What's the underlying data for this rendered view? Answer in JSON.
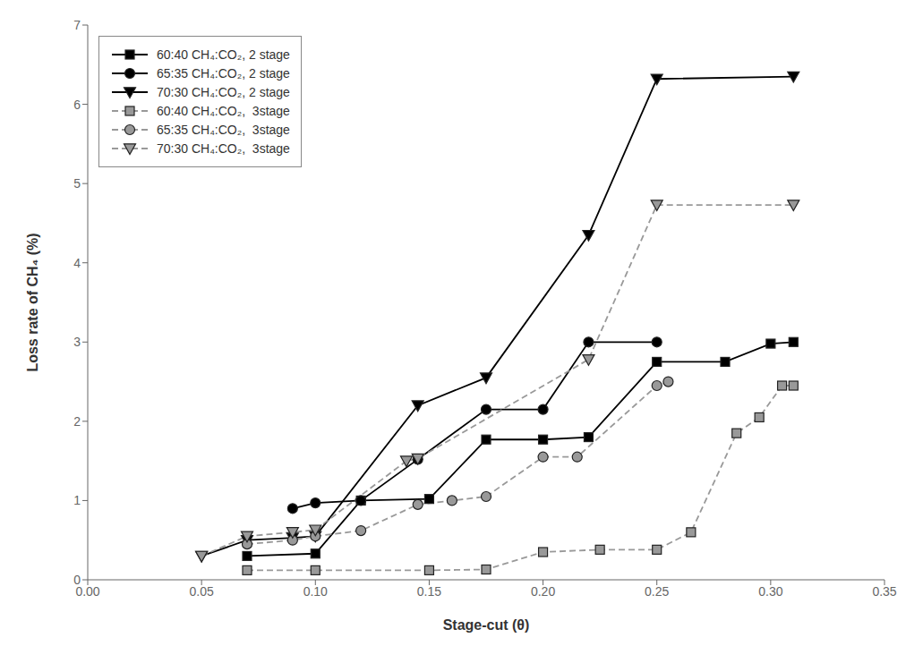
{
  "chart_data": {
    "type": "line",
    "x_label": "Stage-cut (θ)",
    "y_label": "Loss rate of CH₄ (%)",
    "xlim": [
      0.0,
      0.35
    ],
    "ylim": [
      0,
      7
    ],
    "xticks": [
      {
        "value": 0.0,
        "label": "0.00"
      },
      {
        "value": 0.05,
        "label": "0.05"
      },
      {
        "value": 0.1,
        "label": "0.10"
      },
      {
        "value": 0.15,
        "label": "0.15"
      },
      {
        "value": 0.2,
        "label": "0.20"
      },
      {
        "value": 0.25,
        "label": "0.25"
      },
      {
        "value": 0.3,
        "label": "0.30"
      },
      {
        "value": 0.35,
        "label": "0.35"
      }
    ],
    "yticks": [
      0,
      1,
      2,
      3,
      4,
      5,
      6,
      7
    ],
    "grid": false,
    "legend": "upper left",
    "series": [
      {
        "name": "60:40 CH₄:CO₂, 2 stage",
        "color": "#000000",
        "marker": "square",
        "line_style": "solid",
        "x": [
          0.07,
          0.1,
          0.12,
          0.15,
          0.175,
          0.2,
          0.22,
          0.25,
          0.28,
          0.3,
          0.31
        ],
        "values": [
          0.3,
          0.33,
          1.0,
          1.02,
          1.77,
          1.77,
          1.8,
          2.75,
          2.75,
          2.98,
          3.0
        ]
      },
      {
        "name": "65:35 CH₄:CO₂, 2 stage",
        "color": "#000000",
        "marker": "circle",
        "line_style": "solid",
        "x": [
          0.09,
          0.1,
          0.12,
          0.145,
          0.175,
          0.2,
          0.22,
          0.25
        ],
        "values": [
          0.9,
          0.97,
          1.0,
          1.52,
          2.15,
          2.15,
          3.0,
          3.0
        ]
      },
      {
        "name": "70:30 CH₄:CO₂, 2 stage",
        "color": "#000000",
        "marker": "triangle_down",
        "line_style": "solid",
        "x": [
          0.05,
          0.07,
          0.09,
          0.1,
          0.145,
          0.175,
          0.22,
          0.25,
          0.31
        ],
        "values": [
          0.3,
          0.5,
          0.53,
          0.55,
          2.2,
          2.55,
          4.35,
          6.32,
          6.35
        ]
      },
      {
        "name": "60:40 CH₄:CO₂,  3stage",
        "color": "#999999",
        "marker": "square",
        "line_style": "dashed",
        "x": [
          0.07,
          0.1,
          0.15,
          0.175,
          0.2,
          0.225,
          0.25,
          0.265,
          0.285,
          0.295,
          0.305,
          0.31
        ],
        "values": [
          0.12,
          0.12,
          0.12,
          0.13,
          0.35,
          0.38,
          0.38,
          0.6,
          1.85,
          2.05,
          2.45,
          2.45
        ]
      },
      {
        "name": "65:35 CH₄:CO₂,  3stage",
        "color": "#999999",
        "marker": "circle",
        "line_style": "dashed",
        "x": [
          0.07,
          0.09,
          0.1,
          0.12,
          0.145,
          0.16,
          0.175,
          0.2,
          0.215,
          0.25,
          0.255
        ],
        "values": [
          0.45,
          0.5,
          0.55,
          0.62,
          0.95,
          1.0,
          1.05,
          1.55,
          1.55,
          2.45,
          2.5
        ]
      },
      {
        "name": "70:30 CH₄:CO₂,  3stage",
        "color": "#999999",
        "marker": "triangle_down",
        "line_style": "dashed",
        "x": [
          0.05,
          0.07,
          0.09,
          0.1,
          0.14,
          0.145,
          0.22,
          0.25,
          0.31
        ],
        "values": [
          0.3,
          0.55,
          0.6,
          0.63,
          1.5,
          1.53,
          2.78,
          4.73,
          4.73
        ]
      }
    ]
  }
}
